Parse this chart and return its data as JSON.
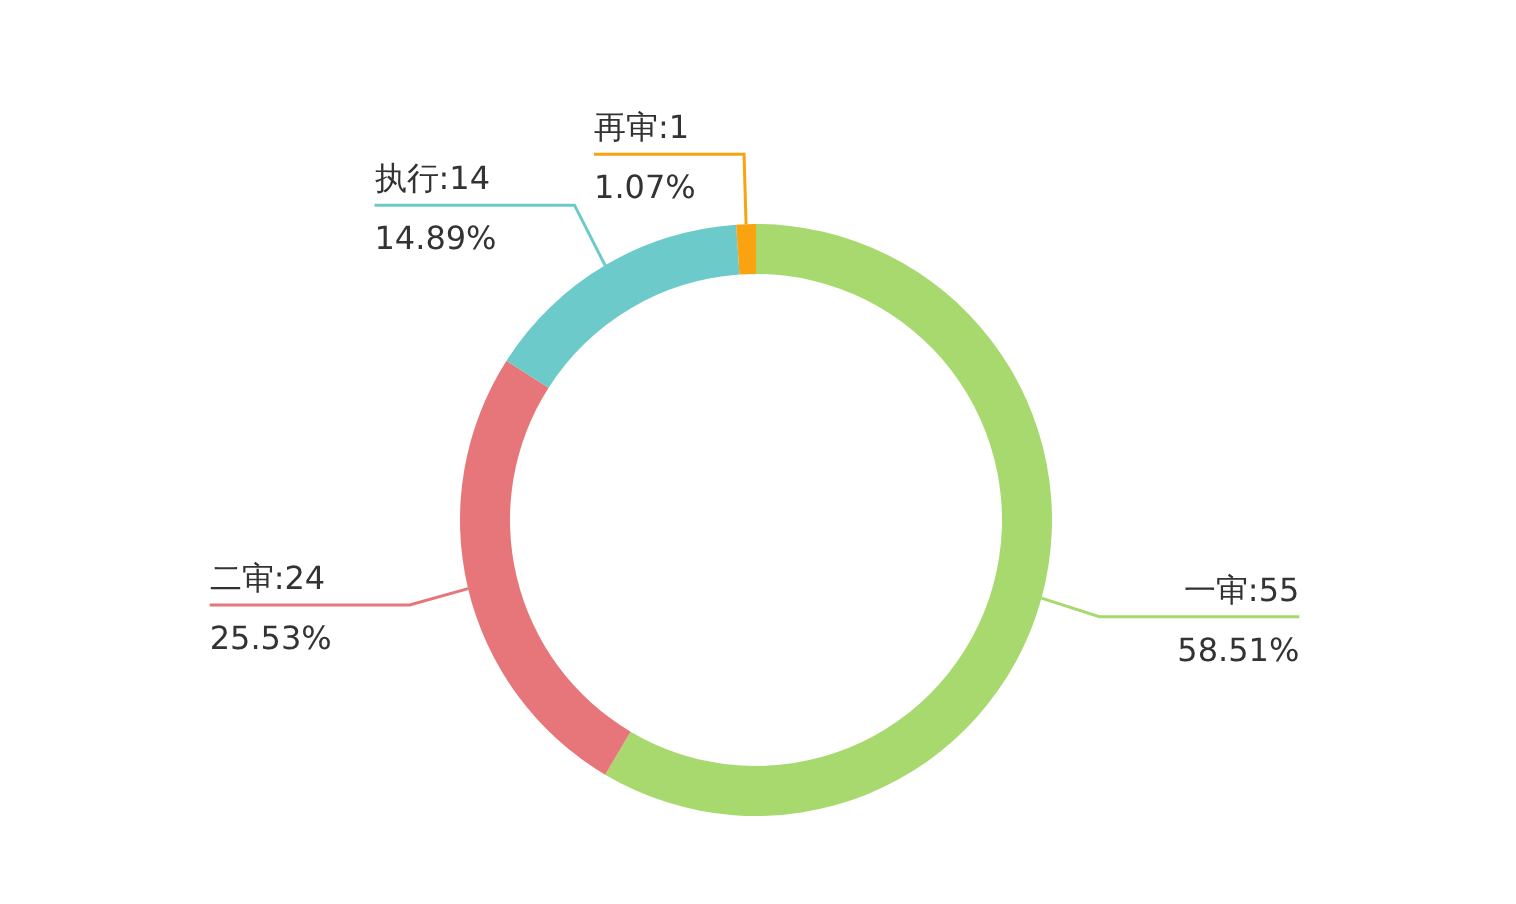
{
  "chart_data": {
    "type": "donut",
    "categories": [
      "一审:55",
      "二审:24",
      "执行:14",
      "再审:1"
    ],
    "values": [
      58.51,
      25.53,
      14.89,
      1.07
    ],
    "colors": [
      "#a8d96e",
      "#e7767a",
      "#6ccbca",
      "#f8a30f"
    ],
    "value_labels": [
      "58.51%",
      "25.53%",
      "14.89%",
      "1.07%"
    ],
    "legend": false
  }
}
